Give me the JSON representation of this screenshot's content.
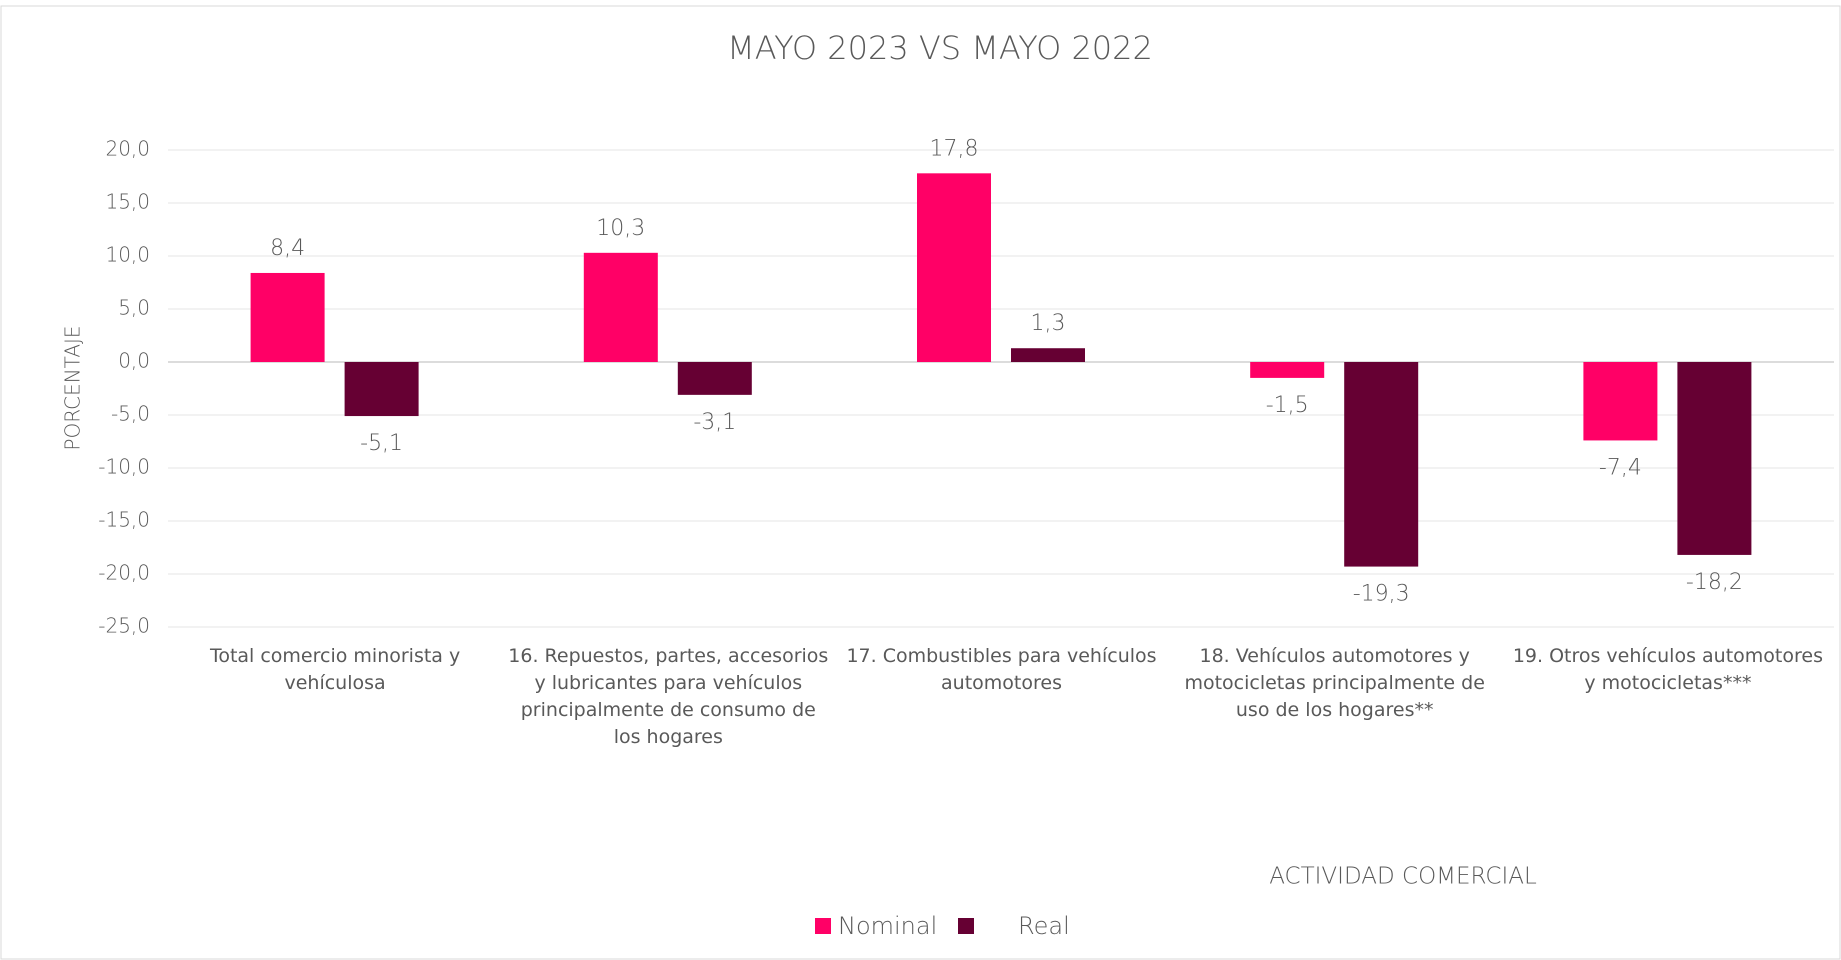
{
  "chart_data": {
    "type": "bar",
    "title": "MAYO 2023 VS MAYO 2022",
    "y_label": "PORCENTAJE",
    "x_label": "ACTIVIDAD COMERCIAL",
    "categories": [
      "Total comercio minorista y vehículosa",
      "16. Repuestos, partes, accesorios y lubricantes para vehículos principalmente de consumo de los hogares",
      "17. Combustibles para vehículos automotores",
      "18. Vehículos automotores y motocicletas principalmente de uso de los hogares**",
      "19. Otros vehículos automotores y motocicletas***"
    ],
    "series": [
      {
        "name": "Nominal",
        "color": "#ff0066",
        "values": [
          8.4,
          10.3,
          17.8,
          -1.5,
          -7.4
        ],
        "value_labels": [
          "8,4",
          "10,3",
          "17,8",
          "-1,5",
          "-7,4"
        ]
      },
      {
        "name": "Real",
        "color": "#660033",
        "values": [
          -5.1,
          -3.1,
          1.3,
          -19.3,
          -18.2
        ],
        "value_labels": [
          "-5,1",
          "-3,1",
          "1,3",
          "-19,3",
          "-18,2"
        ]
      }
    ],
    "ylim": [
      -25,
      20
    ],
    "yticks": [
      {
        "value": -25,
        "label": "-25,0"
      },
      {
        "value": -20,
        "label": "-20,0"
      },
      {
        "value": -15,
        "label": "-15,0"
      },
      {
        "value": -10,
        "label": "-10,0"
      },
      {
        "value": -5,
        "label": "-5,0"
      },
      {
        "value": 0,
        "label": "0,0"
      },
      {
        "value": 5,
        "label": "5,0"
      },
      {
        "value": 10,
        "label": "10,0"
      },
      {
        "value": 15,
        "label": "15,0"
      },
      {
        "value": 20,
        "label": "20,0"
      }
    ],
    "grid": true,
    "legend": "bottom"
  }
}
